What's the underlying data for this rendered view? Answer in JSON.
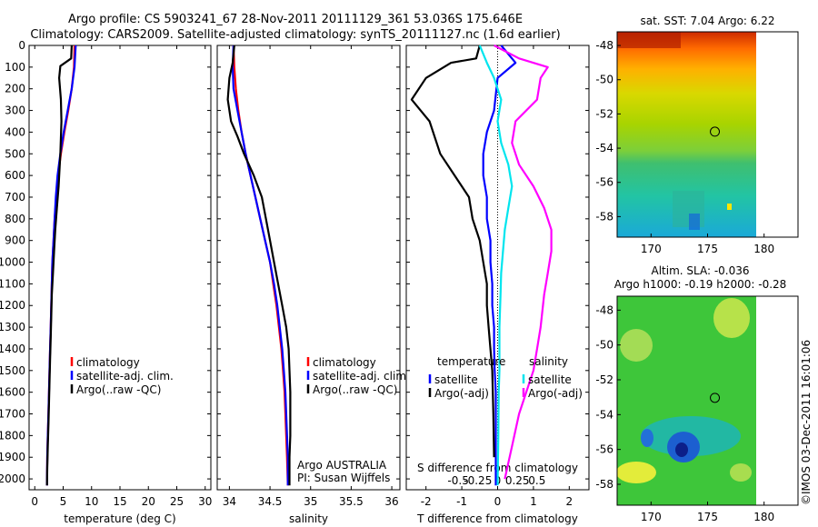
{
  "titles": {
    "line1": "Argo profile: CS 5903241_67 28-Nov-2011 20111129_361 53.036S 175.646E",
    "line2": "Climatology: CARS2009. Satellite-adjusted climatology: synTS_20111127.nc (1.6d earlier)"
  },
  "credit": "©IMOS 03-Dec-2011 16:01:06",
  "colors": {
    "climatology": "#ff0000",
    "satellite": "#0000ff",
    "argo": "#000000",
    "satellite_salinity": "#00e5ee",
    "argo_salinity": "#ff00ff"
  },
  "chart_data": [
    {
      "type": "line",
      "xlabel": "temperature (deg C)",
      "ylabel": "",
      "xlim": [
        -1,
        31
      ],
      "ylim": [
        2050,
        0
      ],
      "xticks": [
        "0",
        "5",
        "10",
        "15",
        "20",
        "25",
        "30"
      ],
      "yticks": [
        "0",
        "100",
        "200",
        "300",
        "400",
        "500",
        "600",
        "700",
        "800",
        "900",
        "1000",
        "1100",
        "1200",
        "1300",
        "1400",
        "1500",
        "1600",
        "1700",
        "1800",
        "1900",
        "2000"
      ],
      "legend": {
        "position": "lower-right",
        "entries": [
          "climatology",
          "satellite-adj. clim.",
          "Argo(..raw -QC)"
        ]
      },
      "series": [
        {
          "name": "climatology",
          "x": [
            7.0,
            6.9,
            6.5,
            5.9,
            5.2,
            4.6,
            4.1,
            3.8,
            3.5,
            3.3,
            3.1,
            3.0,
            2.9,
            2.8,
            2.7,
            2.6,
            2.5,
            2.4,
            2.3,
            2.2,
            2.15
          ],
          "y": [
            0,
            100,
            200,
            300,
            400,
            500,
            600,
            700,
            800,
            900,
            1000,
            1100,
            1200,
            1300,
            1400,
            1500,
            1600,
            1700,
            1800,
            1900,
            2030
          ]
        },
        {
          "name": "satellite-adj. clim.",
          "x": [
            7.2,
            7.0,
            6.5,
            5.8,
            5.1,
            4.5,
            4.0,
            3.7,
            3.5,
            3.3,
            3.1,
            3.0,
            2.9,
            2.8,
            2.7,
            2.6,
            2.5,
            2.4,
            2.3,
            2.2,
            2.15
          ],
          "y": [
            0,
            100,
            200,
            300,
            400,
            500,
            600,
            700,
            800,
            900,
            1000,
            1100,
            1200,
            1300,
            1400,
            1500,
            1600,
            1700,
            1800,
            1900,
            2030
          ]
        },
        {
          "name": "Argo(..raw -QC)",
          "x": [
            6.5,
            6.4,
            4.5,
            4.3,
            4.6,
            4.7,
            4.5,
            4.2,
            3.9,
            3.6,
            3.4,
            3.2,
            3.0,
            2.9,
            2.8,
            2.7,
            2.6,
            2.5,
            2.4,
            2.3,
            2.2,
            2.15
          ],
          "y": [
            0,
            60,
            95,
            150,
            250,
            350,
            500,
            650,
            750,
            850,
            950,
            1050,
            1150,
            1250,
            1350,
            1450,
            1550,
            1650,
            1750,
            1850,
            1950,
            2030
          ]
        }
      ]
    },
    {
      "type": "line",
      "xlabel": "salinity",
      "ylabel": "",
      "xlim": [
        33.85,
        36.1
      ],
      "ylim": [
        2050,
        0
      ],
      "xticks": [
        "34",
        "34.5",
        "35",
        "35.5",
        "36"
      ],
      "legend": {
        "position": "lower-right",
        "entries": [
          "climatology",
          "satellite-adj. clim.",
          "Argo(..raw -QC)"
        ]
      },
      "annotations": [
        "Argo AUSTRALIA",
        "PI: Susan Wijffels"
      ],
      "series": [
        {
          "name": "climatology",
          "x": [
            34.05,
            34.06,
            34.08,
            34.11,
            34.15,
            34.2,
            34.26,
            34.32,
            34.38,
            34.44,
            34.5,
            34.54,
            34.58,
            34.61,
            34.64,
            34.66,
            34.68,
            34.69,
            34.7,
            34.71,
            34.72
          ],
          "y": [
            0,
            100,
            200,
            300,
            400,
            500,
            600,
            700,
            800,
            900,
            1000,
            1100,
            1200,
            1300,
            1400,
            1500,
            1600,
            1700,
            1800,
            1900,
            2030
          ]
        },
        {
          "name": "satellite-adj. clim.",
          "x": [
            34.05,
            34.04,
            34.05,
            34.1,
            34.15,
            34.2,
            34.26,
            34.32,
            34.38,
            34.44,
            34.5,
            34.55,
            34.59,
            34.62,
            34.65,
            34.67,
            34.69,
            34.7,
            34.71,
            34.72,
            34.72
          ],
          "y": [
            0,
            100,
            200,
            300,
            400,
            500,
            600,
            700,
            800,
            900,
            1000,
            1100,
            1200,
            1300,
            1400,
            1500,
            1600,
            1700,
            1800,
            1900,
            2030
          ]
        },
        {
          "name": "Argo(..raw -QC)",
          "x": [
            34.06,
            34.04,
            34.0,
            33.98,
            34.02,
            34.1,
            34.18,
            34.3,
            34.4,
            34.45,
            34.5,
            34.55,
            34.6,
            34.65,
            34.7,
            34.73,
            34.74,
            34.75,
            34.75,
            34.75,
            34.74,
            34.74
          ],
          "y": [
            0,
            80,
            150,
            250,
            350,
            420,
            500,
            600,
            700,
            800,
            900,
            1000,
            1100,
            1200,
            1300,
            1400,
            1500,
            1600,
            1700,
            1800,
            1900,
            2030
          ]
        }
      ]
    },
    {
      "type": "line",
      "xlabel": "T difference from climatology",
      "x2label": "S difference from climatology",
      "ylabel": "",
      "xlim": [
        -2.55,
        2.55
      ],
      "ylim": [
        2050,
        0
      ],
      "xticks": [
        "-2",
        "-1",
        "0",
        "1",
        "2"
      ],
      "x2ticks": [
        "-0.5",
        "-0.25",
        "0",
        "0.25",
        "0.5"
      ],
      "legend": {
        "position": "lower-right",
        "groups": [
          {
            "heading": "temperature",
            "entries": [
              "satellite",
              "Argo(-adj)"
            ]
          },
          {
            "heading": "salinity",
            "entries": [
              "satellite",
              "Argo(-adj)"
            ]
          }
        ]
      },
      "series": [
        {
          "name": "satellite",
          "group": "temperature",
          "x": [
            0.1,
            0.5,
            0.0,
            -0.1,
            -0.3,
            -0.4,
            -0.4,
            -0.3,
            -0.3,
            -0.2,
            -0.2,
            -0.15,
            -0.15,
            -0.1,
            -0.1,
            -0.08,
            -0.05,
            -0.05,
            -0.05
          ],
          "y": [
            0,
            80,
            150,
            300,
            400,
            500,
            600,
            700,
            800,
            900,
            1000,
            1100,
            1200,
            1300,
            1400,
            1500,
            1600,
            1800,
            2030
          ]
        },
        {
          "name": "Argo(-adj)",
          "group": "temperature",
          "x": [
            -0.5,
            -0.6,
            -1.3,
            -2.0,
            -2.4,
            -1.9,
            -1.6,
            -1.2,
            -0.8,
            -0.7,
            -0.5,
            -0.4,
            -0.3,
            -0.3,
            -0.25,
            -0.2,
            -0.15,
            -0.12,
            -0.1
          ],
          "y": [
            0,
            60,
            80,
            150,
            250,
            350,
            500,
            600,
            700,
            800,
            900,
            1000,
            1100,
            1200,
            1300,
            1400,
            1500,
            1700,
            1900
          ]
        },
        {
          "name": "satellite",
          "group": "salinity",
          "x": [
            -0.5,
            -0.3,
            -0.1,
            0.1,
            0.0,
            0.1,
            0.3,
            0.4,
            0.3,
            0.2,
            0.15,
            0.1,
            0.08,
            0.05,
            0.05,
            0.05,
            0.03,
            0.02,
            0.0
          ],
          "y": [
            0,
            80,
            150,
            250,
            350,
            450,
            550,
            650,
            750,
            850,
            950,
            1050,
            1150,
            1300,
            1400,
            1500,
            1600,
            1800,
            2030
          ]
        },
        {
          "name": "Argo(-adj)",
          "group": "salinity",
          "x": [
            -0.1,
            0.6,
            1.4,
            1.2,
            1.1,
            0.5,
            0.4,
            0.6,
            1.0,
            1.3,
            1.5,
            1.5,
            1.4,
            1.3,
            1.2,
            1.1,
            1.0,
            0.8,
            0.6,
            0.4,
            0.2
          ],
          "y": [
            0,
            60,
            100,
            150,
            250,
            350,
            450,
            550,
            650,
            750,
            850,
            950,
            1050,
            1150,
            1300,
            1400,
            1500,
            1600,
            1700,
            1850,
            2000
          ]
        }
      ]
    },
    {
      "type": "heatmap",
      "title": "sat. SST: 7.04 Argo: 6.22",
      "xlim": [
        167,
        183
      ],
      "ylim": [
        -59.2,
        -47.2
      ],
      "xticks": [
        "170",
        "175",
        "180"
      ],
      "yticks": [
        "-48",
        "-50",
        "-52",
        "-54",
        "-56",
        "-58"
      ],
      "profile_marker": {
        "lon": 175.646,
        "lat": -53.036
      }
    },
    {
      "type": "heatmap",
      "title": "Altim. SLA: -0.036",
      "subtitle": "Argo h1000: -0.19 h2000: -0.28",
      "xlim": [
        167,
        183
      ],
      "ylim": [
        -59.2,
        -47.2
      ],
      "xticks": [
        "170",
        "175",
        "180"
      ],
      "yticks": [
        "-48",
        "-50",
        "-52",
        "-54",
        "-56",
        "-58"
      ],
      "profile_marker": {
        "lon": 175.646,
        "lat": -53.036
      }
    }
  ]
}
